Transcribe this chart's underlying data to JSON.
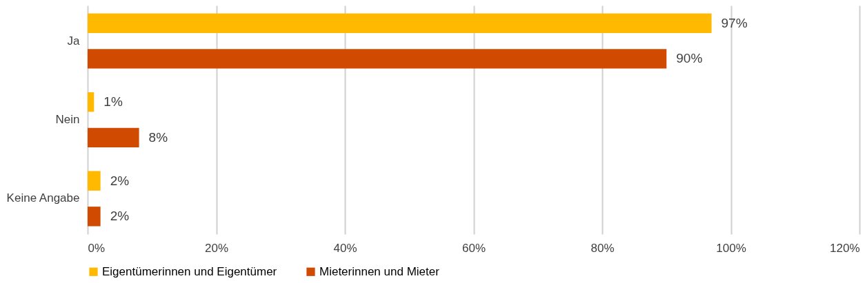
{
  "chart_data": {
    "type": "bar",
    "orientation": "horizontal",
    "categories": [
      "Ja",
      "Nein",
      "Keine Angabe"
    ],
    "series": [
      {
        "name": "Eigentümerinnen und Eigentümer",
        "color": "#ffb900",
        "values": [
          97,
          1,
          2
        ],
        "value_labels": [
          "97%",
          "1%",
          "2%"
        ]
      },
      {
        "name": "Mieterinnen und Mieter",
        "color": "#d04a02",
        "values": [
          90,
          8,
          2
        ],
        "value_labels": [
          "90%",
          "8%",
          "2%"
        ]
      }
    ],
    "xlim": [
      0,
      120
    ],
    "xticks": [
      {
        "value": 0,
        "label": "0%"
      },
      {
        "value": 20,
        "label": "20%"
      },
      {
        "value": 40,
        "label": "40%"
      },
      {
        "value": 60,
        "label": "60%"
      },
      {
        "value": 80,
        "label": "80%"
      },
      {
        "value": 100,
        "label": "100%"
      },
      {
        "value": 120,
        "label": "120%"
      }
    ],
    "grid": "x",
    "legend": "bottom"
  }
}
